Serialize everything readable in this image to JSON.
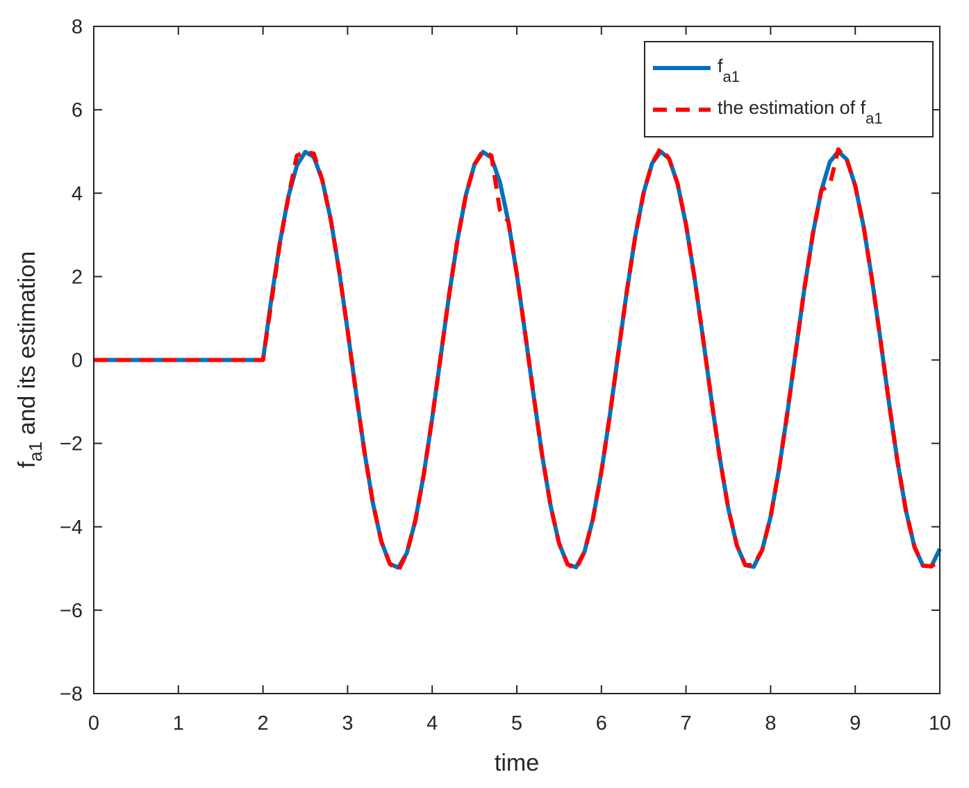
{
  "chart_data": {
    "type": "line",
    "xlabel": "time",
    "ylabel": {
      "main": "f",
      "sub": "a1",
      "rest": " and its estimation"
    },
    "x": [
      0,
      0.1,
      0.2,
      0.3,
      0.4,
      0.5,
      0.6,
      0.7,
      0.8,
      0.9,
      1,
      1.1,
      1.2,
      1.3,
      1.4,
      1.5,
      1.6,
      1.7,
      1.8,
      1.9,
      2,
      2.1,
      2.2,
      2.3,
      2.4,
      2.5,
      2.6,
      2.7,
      2.8,
      2.9,
      3,
      3.1,
      3.2,
      3.3,
      3.4,
      3.5,
      3.6,
      3.7,
      3.8,
      3.9,
      4,
      4.1,
      4.2,
      4.3,
      4.4,
      4.5,
      4.6,
      4.7,
      4.8,
      4.9,
      5,
      5.1,
      5.2,
      5.3,
      5.4,
      5.5,
      5.6,
      5.7,
      5.8,
      5.9,
      6,
      6.1,
      6.2,
      6.3,
      6.4,
      6.5,
      6.6,
      6.7,
      6.8,
      6.9,
      7,
      7.1,
      7.2,
      7.3,
      7.4,
      7.5,
      7.6,
      7.7,
      7.8,
      7.9,
      8,
      8.1,
      8.2,
      8.3,
      8.4,
      8.5,
      8.6,
      8.7,
      8.8,
      8.9,
      9,
      9.1,
      9.2,
      9.3,
      9.4,
      9.5,
      9.6,
      9.7,
      9.8,
      9.9,
      10
    ],
    "series": [
      {
        "name": "f",
        "name_sub": "a1",
        "color": "#0072bd",
        "style": "solid",
        "values": [
          0,
          0,
          0,
          0,
          0,
          0,
          0,
          0,
          0,
          0,
          0,
          0,
          0,
          0,
          0,
          0,
          0,
          0,
          0,
          0,
          0,
          1.48,
          2.82,
          3.92,
          4.66,
          4.99,
          4.87,
          4.32,
          3.38,
          2.14,
          0.71,
          -0.79,
          -2.21,
          -3.44,
          -4.36,
          -4.89,
          -4.98,
          -4.63,
          -3.86,
          -2.75,
          -1.4,
          0.08,
          1.56,
          2.89,
          3.97,
          4.69,
          4.99,
          4.85,
          4.27,
          3.32,
          2.06,
          0.62,
          -0.87,
          -2.29,
          -3.5,
          -4.4,
          -4.9,
          -4.97,
          -4.6,
          -3.81,
          -2.68,
          -1.32,
          0.17,
          1.64,
          2.96,
          4.02,
          4.72,
          5,
          4.83,
          4.23,
          3.25,
          1.98,
          0.54,
          -0.95,
          -2.36,
          -3.56,
          -4.44,
          -4.92,
          -4.96,
          -4.56,
          -3.76,
          -2.61,
          -1.24,
          0.25,
          1.72,
          3.03,
          4.07,
          4.75,
          5,
          4.81,
          4.18,
          3.19,
          1.91,
          0.46,
          -1.04,
          -2.44,
          -3.62,
          -4.48,
          -4.93,
          -4.95,
          -4.53
        ]
      },
      {
        "name": "the estimation of f",
        "name_sub": "a1",
        "color": "#ff0000",
        "style": "dashed",
        "values": [
          0,
          0,
          0,
          0,
          0,
          0,
          0,
          0,
          0,
          0,
          0,
          0,
          0,
          0,
          0,
          0,
          0,
          0,
          0,
          0,
          0,
          1.4,
          2.8,
          3.9,
          4.9,
          4.99,
          4.95,
          4.32,
          3.38,
          2.14,
          0.71,
          -0.79,
          -2.21,
          -3.44,
          -4.36,
          -4.89,
          -5.05,
          -4.63,
          -3.86,
          -2.75,
          -1.4,
          0.08,
          1.56,
          2.89,
          3.97,
          4.69,
          5.02,
          4.9,
          3.6,
          3.32,
          2.06,
          0.62,
          -0.87,
          -2.29,
          -3.5,
          -4.4,
          -4.9,
          -5.02,
          -4.6,
          -3.81,
          -2.68,
          -1.32,
          0.17,
          1.64,
          2.96,
          4.02,
          4.72,
          5.08,
          4.83,
          4.23,
          3.25,
          1.98,
          0.54,
          -0.95,
          -2.36,
          -3.56,
          -4.44,
          -4.92,
          -4.92,
          -4.56,
          -3.76,
          -2.61,
          -1.24,
          0.25,
          1.72,
          3.03,
          4.07,
          4.2,
          5.05,
          4.81,
          4.18,
          3.19,
          1.91,
          0.46,
          -1.04,
          -2.44,
          -3.62,
          -4.48,
          -4.93,
          -4.95,
          -4.8
        ]
      }
    ],
    "xlim": [
      0,
      10
    ],
    "xticks": [
      0,
      1,
      2,
      3,
      4,
      5,
      6,
      7,
      8,
      9,
      10
    ],
    "ylim": [
      -8,
      8
    ],
    "yticks": [
      {
        "value": -8,
        "label": "−8"
      },
      {
        "value": -6,
        "label": "−6"
      },
      {
        "value": -4,
        "label": "−4"
      },
      {
        "value": -2,
        "label": "−2"
      },
      0,
      2,
      4,
      6,
      8
    ],
    "grid": false,
    "legend": "upper right"
  }
}
